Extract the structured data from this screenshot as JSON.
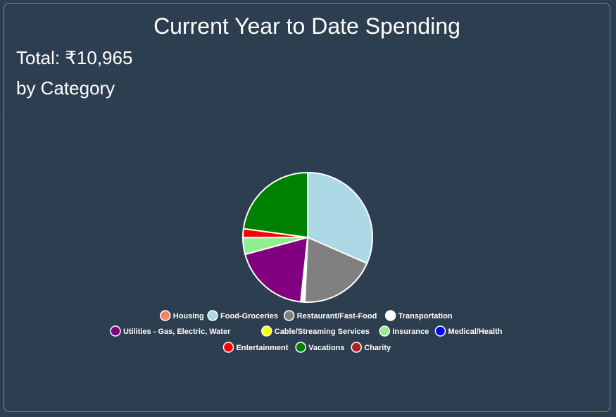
{
  "card": {
    "title": "Current Year to Date Spending",
    "total_label": "Total: ₹10,965",
    "subtitle": "by Category"
  },
  "chart_data": {
    "type": "pie",
    "categories": [
      "Housing",
      "Food-Groceries",
      "Restaurant/Fast-Food",
      "Transportation",
      "Utilities - Gas, Electric, Water",
      "Cable/Streaming Services",
      "Insurance",
      "Medical/Health",
      "Entertainment",
      "Vacations",
      "Charity"
    ],
    "values": [
      0,
      3460,
      2100,
      110,
      2090,
      0,
      460,
      0,
      240,
      2505,
      0
    ],
    "colors": [
      "#f4845f",
      "#add8e6",
      "#808080",
      "#ffffff",
      "#800080",
      "#ffff00",
      "#90ee90",
      "#0000ff",
      "#ff0000",
      "#008000",
      "#b22222"
    ],
    "legend_position": "bottom"
  }
}
